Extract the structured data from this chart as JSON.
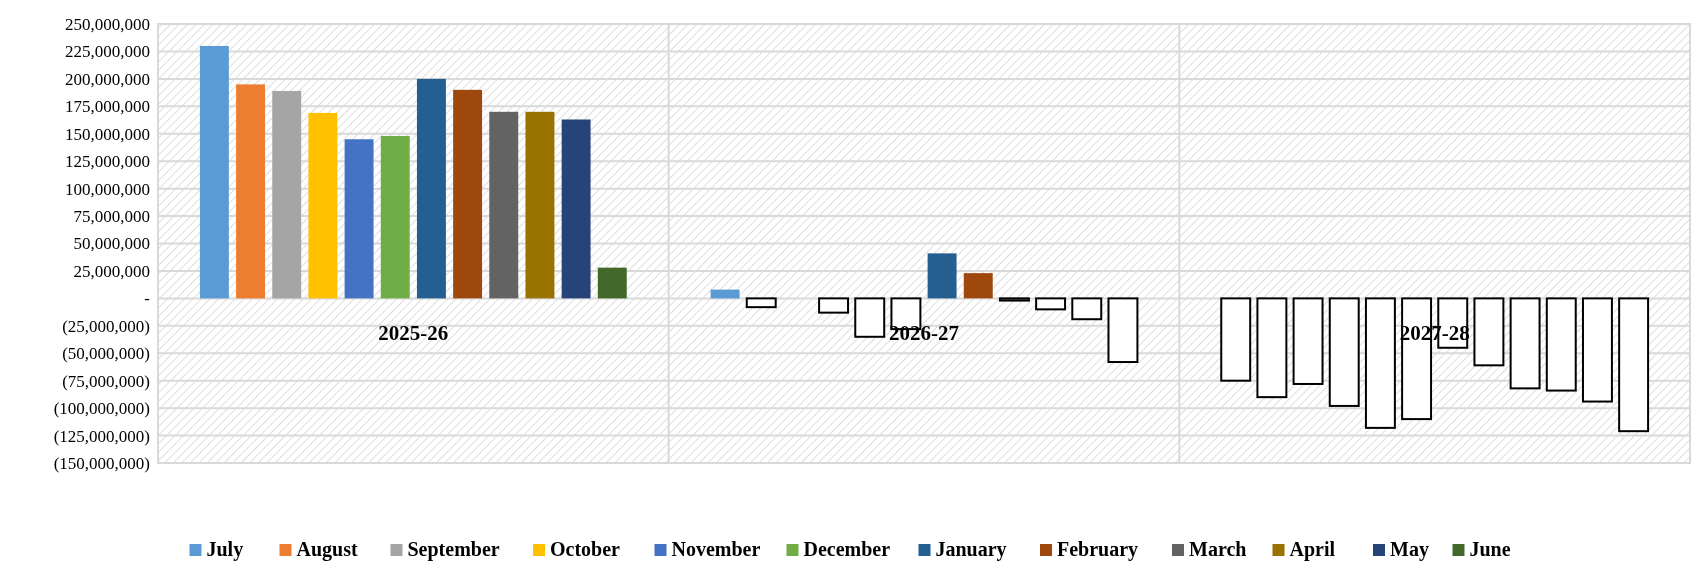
{
  "chart_data": {
    "type": "bar",
    "categories": [
      "2025-26",
      "2026-27",
      "2027-28"
    ],
    "series": [
      {
        "name": "July",
        "color": "#5b9bd5",
        "colors": [
          "#5b9bd5",
          "#5b9bd5",
          "#ffffff"
        ],
        "values": [
          230000000,
          8000000,
          -75000000
        ]
      },
      {
        "name": "August",
        "color": "#ed7d31",
        "colors": [
          "#ed7d31",
          "#ffffff",
          "#ffffff"
        ],
        "values": [
          195000000,
          -8000000,
          -90000000
        ]
      },
      {
        "name": "September",
        "color": "#a5a5a5",
        "colors": [
          "#a5a5a5",
          null,
          "#ffffff"
        ],
        "values": [
          189000000,
          null,
          -78000000
        ]
      },
      {
        "name": "October",
        "color": "#ffc000",
        "colors": [
          "#ffc000",
          "#ffffff",
          "#ffffff"
        ],
        "values": [
          169000000,
          -13000000,
          -98000000
        ]
      },
      {
        "name": "November",
        "color": "#4472c4",
        "colors": [
          "#4472c4",
          "#ffffff",
          "#ffffff"
        ],
        "values": [
          145000000,
          -35000000,
          -118000000
        ]
      },
      {
        "name": "December",
        "color": "#70ad47",
        "colors": [
          "#70ad47",
          "#ffffff",
          "#ffffff"
        ],
        "values": [
          148000000,
          -28000000,
          -110000000
        ]
      },
      {
        "name": "January",
        "color": "#255e91",
        "colors": [
          "#255e91",
          "#255e91",
          "#ffffff"
        ],
        "values": [
          200000000,
          41000000,
          -45000000
        ]
      },
      {
        "name": "February",
        "color": "#9e480e",
        "colors": [
          "#9e480e",
          "#9e480e",
          "#ffffff"
        ],
        "values": [
          190000000,
          23000000,
          -61000000
        ]
      },
      {
        "name": "March",
        "color": "#636363",
        "colors": [
          "#636363",
          "#ffffff",
          "#ffffff"
        ],
        "values": [
          170000000,
          -2000000,
          -82000000
        ]
      },
      {
        "name": "April",
        "color": "#997300",
        "colors": [
          "#997300",
          "#ffffff",
          "#ffffff"
        ],
        "values": [
          170000000,
          -10000000,
          -84000000
        ]
      },
      {
        "name": "May",
        "color": "#264478",
        "colors": [
          "#264478",
          "#ffffff",
          "#ffffff"
        ],
        "values": [
          163000000,
          -19000000,
          -94000000
        ]
      },
      {
        "name": "June",
        "color": "#43682b",
        "colors": [
          "#43682b",
          "#ffffff",
          "#ffffff"
        ],
        "values": [
          28000000,
          -58000000,
          -121000000
        ]
      }
    ],
    "ylim": [
      -150000000,
      250000000
    ],
    "yticks": [
      {
        "value": -150000000,
        "label": "(150,000,000)"
      },
      {
        "value": -125000000,
        "label": "(125,000,000)"
      },
      {
        "value": -100000000,
        "label": "(100,000,000)"
      },
      {
        "value": -75000000,
        "label": "(75,000,000)"
      },
      {
        "value": -50000000,
        "label": "(50,000,000)"
      },
      {
        "value": -25000000,
        "label": "(25,000,000)"
      },
      {
        "value": 0,
        "label": "-"
      },
      {
        "value": 25000000,
        "label": "25,000,000"
      },
      {
        "value": 50000000,
        "label": "50,000,000"
      },
      {
        "value": 75000000,
        "label": "75,000,000"
      },
      {
        "value": 100000000,
        "label": "100,000,000"
      },
      {
        "value": 125000000,
        "label": "125,000,000"
      },
      {
        "value": 150000000,
        "label": "150,000,000"
      },
      {
        "value": 175000000,
        "label": "175,000,000"
      },
      {
        "value": 200000000,
        "label": "200,000,000"
      },
      {
        "value": 225000000,
        "label": "225,000,000"
      },
      {
        "value": 250000000,
        "label": "250,000,000"
      }
    ],
    "grid": true,
    "legend": "bottom"
  }
}
